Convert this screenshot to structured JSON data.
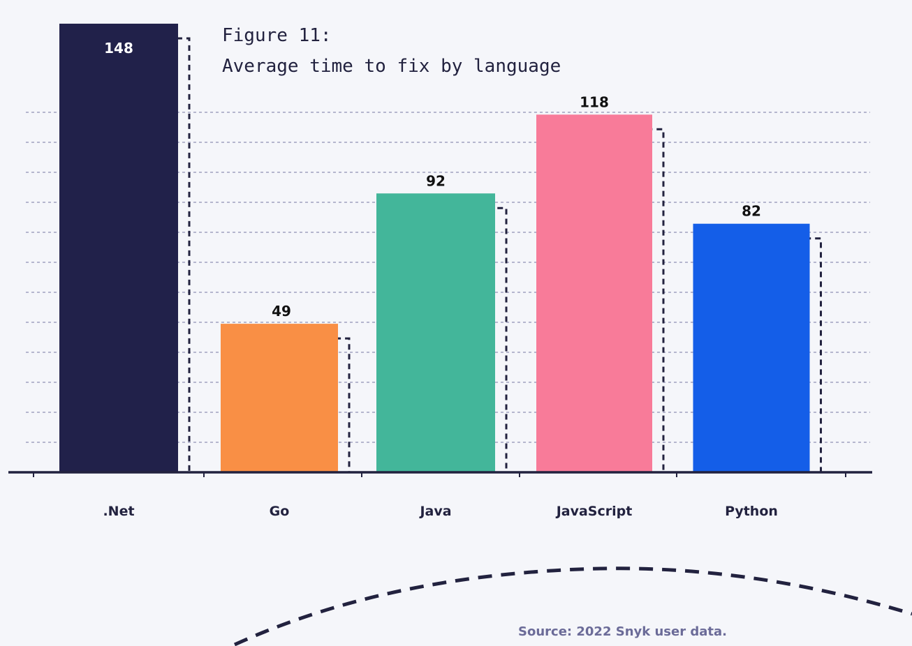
{
  "figure": {
    "number_label": "Figure 11:",
    "title": "Average time to fix by language"
  },
  "source": "Source: 2022 Snyk user data.",
  "chart_data": {
    "type": "bar",
    "title": "Average time to fix by language",
    "categories": [
      ".Net",
      "Go",
      "Java",
      "JavaScript",
      "Python"
    ],
    "values": [
      148,
      49,
      92,
      118,
      82
    ],
    "ylim": [
      0,
      150
    ],
    "grid": true,
    "xlabel": "",
    "ylabel": ""
  },
  "colors": {
    "background": "#f5f6fa",
    "ink": "#22223f",
    "grid": "#a0a0c0",
    "source": "#6b6b98",
    "bars": [
      "#21214a",
      "#f98f45",
      "#43b69a",
      "#f87b99",
      "#145ee8"
    ]
  }
}
